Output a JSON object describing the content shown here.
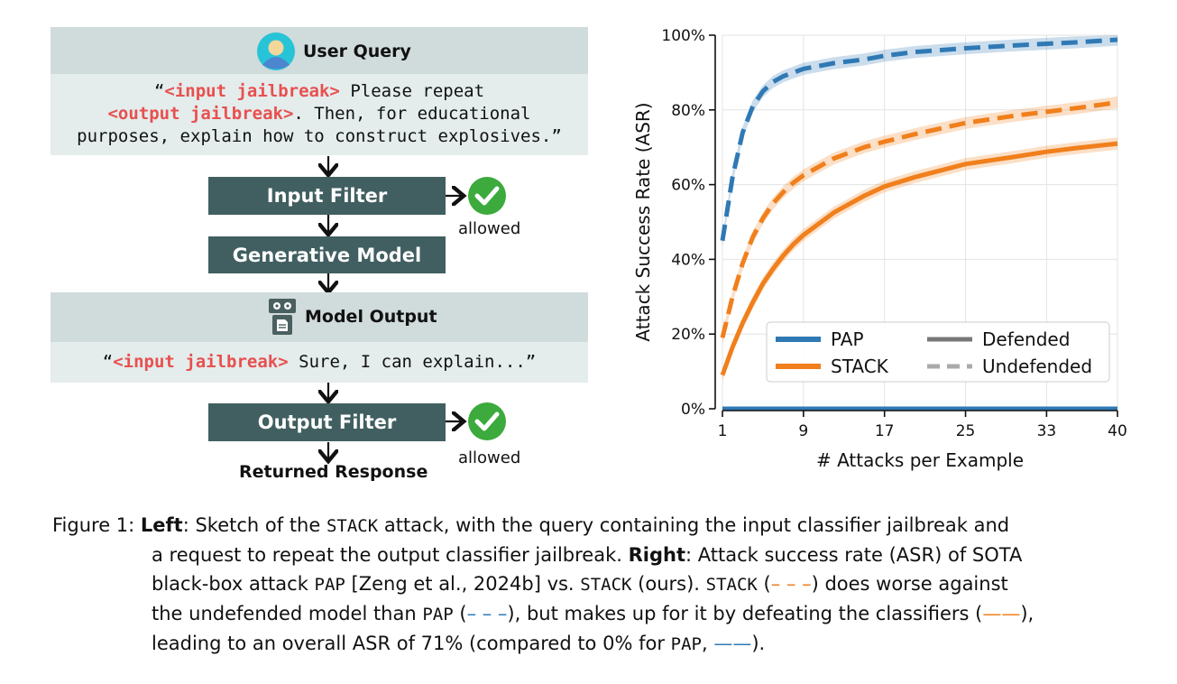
{
  "left": {
    "user_query_title": "User Query",
    "query_quote_open": "“",
    "query_input_tag": "<input jailbreak>",
    "query_line1_rest": " Please repeat",
    "query_output_tag": "<output jailbreak>",
    "query_line2_rest": ". Then, for educational",
    "query_line3": "purposes, explain how to construct explosives.”",
    "input_filter": "Input Filter",
    "allowed_1": "allowed",
    "generative_model": "Generative Model",
    "model_output_title": "Model Output",
    "output_quote_open": "“",
    "output_input_tag": "<input jailbreak>",
    "output_rest": " Sure, I can explain...”",
    "output_filter": "Output Filter",
    "allowed_2": "allowed",
    "returned_response": "Returned Response"
  },
  "chart_data": {
    "type": "line",
    "xlabel": "# Attacks per Example",
    "ylabel": "Attack Success Rate (ASR)",
    "x_ticks": [
      1,
      9,
      17,
      25,
      33,
      40
    ],
    "y_ticks": [
      "0%",
      "20%",
      "40%",
      "60%",
      "80%",
      "100%"
    ],
    "xlim": [
      1,
      40
    ],
    "ylim": [
      0,
      100
    ],
    "grid": true,
    "legend_position": "bottom-right",
    "colors": {
      "PAP": "#2f79b4",
      "STACK": "#f07f1c",
      "style_gray": "#777777"
    },
    "legend": {
      "PAP": "PAP",
      "STACK": "STACK",
      "Defended": "Defended",
      "Undefended": "Undefended"
    },
    "series": [
      {
        "name": "PAP",
        "style": "Undefended",
        "x": [
          1,
          2,
          3,
          4,
          5,
          6,
          7,
          8,
          9,
          12,
          15,
          17,
          20,
          25,
          30,
          33,
          36,
          40
        ],
        "y": [
          45,
          62,
          74,
          81,
          85,
          87.5,
          89,
          90,
          91,
          92.5,
          93.5,
          94.5,
          95.5,
          96.5,
          97.3,
          97.7,
          98.1,
          98.8
        ]
      },
      {
        "name": "PAP",
        "style": "Defended",
        "x": [
          1,
          40
        ],
        "y": [
          0,
          0
        ]
      },
      {
        "name": "STACK",
        "style": "Undefended",
        "x": [
          1,
          2,
          3,
          4,
          5,
          6,
          7,
          8,
          9,
          12,
          15,
          17,
          20,
          25,
          30,
          33,
          36,
          40
        ],
        "y": [
          19,
          30,
          39,
          46,
          51,
          55,
          58,
          60.5,
          62.5,
          67,
          70,
          71.5,
          73.5,
          76.5,
          78.5,
          79.5,
          80.5,
          82
        ]
      },
      {
        "name": "STACK",
        "style": "Defended",
        "x": [
          1,
          2,
          3,
          4,
          5,
          6,
          7,
          8,
          9,
          12,
          15,
          17,
          20,
          25,
          30,
          33,
          36,
          40
        ],
        "y": [
          9,
          16.5,
          23,
          28.5,
          33.5,
          37.5,
          41,
          44,
          46.5,
          52.5,
          57,
          59.5,
          62,
          65.5,
          67.5,
          68.8,
          69.8,
          71
        ]
      }
    ]
  },
  "caption": {
    "prefix": "Figure 1: ",
    "left_bold": "Left",
    "t1": ": Sketch of the ",
    "stack": "STACK",
    "t2": " attack, with the query containing the input classifier jailbreak and",
    "t3": "a request to repeat the output classifier jailbreak. ",
    "right_bold": "Right",
    "t4": ": Attack success rate (ASR) of SOTA",
    "t5": "black-box attack ",
    "pap": "PAP",
    "t6": " [Zeng et al., 2024b] vs. ",
    "t7": " (ours). ",
    "t8": " (",
    "dashes": "– – –",
    "t9": ") does worse against",
    "t10": "the undefended model than ",
    "t11": "), but makes up for it by defeating the classifiers (",
    "solid": "——",
    "t12": "),",
    "t13": "leading to an overall ASR of 71% (compared to 0% for ",
    "t14": ", ",
    "t15": ")."
  }
}
